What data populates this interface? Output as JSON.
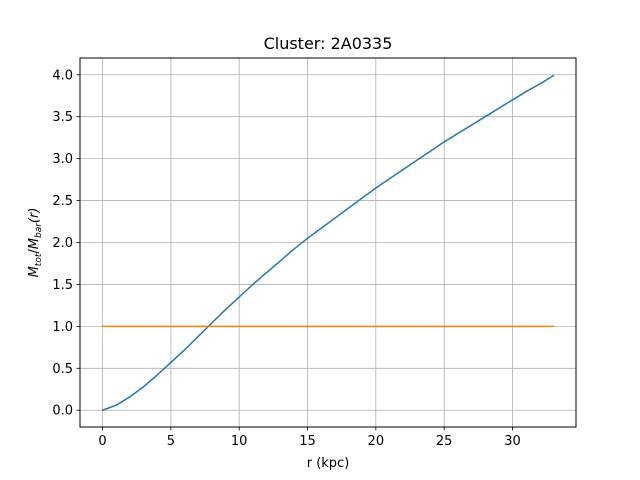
{
  "chart_data": {
    "type": "line",
    "title": "Cluster: 2A0335",
    "xlabel": "r (kpc)",
    "ylabel": {
      "main1": "M",
      "sub1": "tot",
      "slash": "/",
      "main2": "M",
      "sub2": "bar",
      "suffix": "(r)"
    },
    "xlim": [
      -1.65,
      34.65
    ],
    "ylim": [
      -0.2,
      4.2
    ],
    "xticks": [
      0,
      5,
      10,
      15,
      20,
      25,
      30
    ],
    "xtick_labels": [
      "0",
      "5",
      "10",
      "15",
      "20",
      "25",
      "30"
    ],
    "yticks": [
      0.0,
      0.5,
      1.0,
      1.5,
      2.0,
      2.5,
      3.0,
      3.5,
      4.0
    ],
    "ytick_labels": [
      "0.0",
      "0.5",
      "1.0",
      "1.5",
      "2.0",
      "2.5",
      "3.0",
      "3.5",
      "4.0"
    ],
    "grid": true,
    "series": [
      {
        "color": "#1f77b4",
        "x": [
          0,
          1,
          2,
          3,
          4,
          5,
          6,
          7,
          8,
          9,
          10,
          11,
          12,
          13,
          14,
          15,
          16,
          17,
          18,
          19,
          20,
          21,
          22,
          23,
          24,
          25,
          26,
          27,
          28,
          29,
          30,
          31,
          32,
          33
        ],
        "y": [
          0.0,
          0.06,
          0.16,
          0.28,
          0.42,
          0.57,
          0.72,
          0.88,
          1.04,
          1.2,
          1.35,
          1.5,
          1.64,
          1.78,
          1.92,
          2.05,
          2.17,
          2.29,
          2.41,
          2.53,
          2.65,
          2.76,
          2.87,
          2.98,
          3.09,
          3.2,
          3.3,
          3.4,
          3.5,
          3.6,
          3.7,
          3.8,
          3.89,
          3.99
        ]
      },
      {
        "color": "#ff7f0e",
        "x": [
          0,
          33
        ],
        "y": [
          1.0,
          1.0
        ]
      }
    ]
  }
}
